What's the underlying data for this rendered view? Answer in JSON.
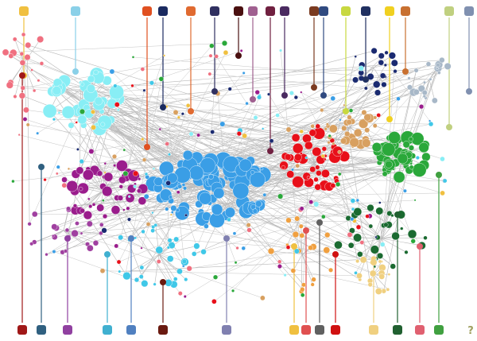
{
  "legend": {
    "unknown_label": "?"
  }
}
